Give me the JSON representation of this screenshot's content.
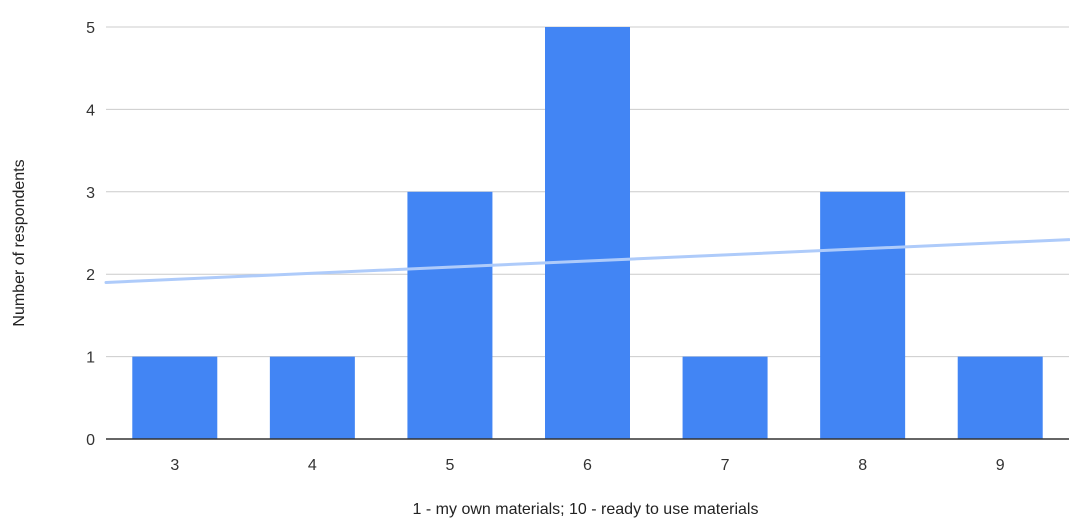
{
  "chart_data": {
    "type": "bar",
    "categories": [
      "3",
      "4",
      "5",
      "6",
      "7",
      "8",
      "9"
    ],
    "values": [
      1,
      1,
      3,
      5,
      1,
      3,
      1
    ],
    "xlabel": "1 - my own materials; 10 - ready to use materials",
    "ylabel": "Number of respondents",
    "ylim": [
      0,
      5
    ],
    "yticks": [
      "0",
      "1",
      "2",
      "3",
      "4",
      "5"
    ],
    "grid": true,
    "legend": "none",
    "trendline": {
      "type": "linear",
      "start_value": 1.9,
      "end_value": 2.42
    },
    "colors": {
      "bar": "#4285f4",
      "trendline": "#aecbfa",
      "grid": "#cccccc",
      "axis": "#333333"
    }
  }
}
